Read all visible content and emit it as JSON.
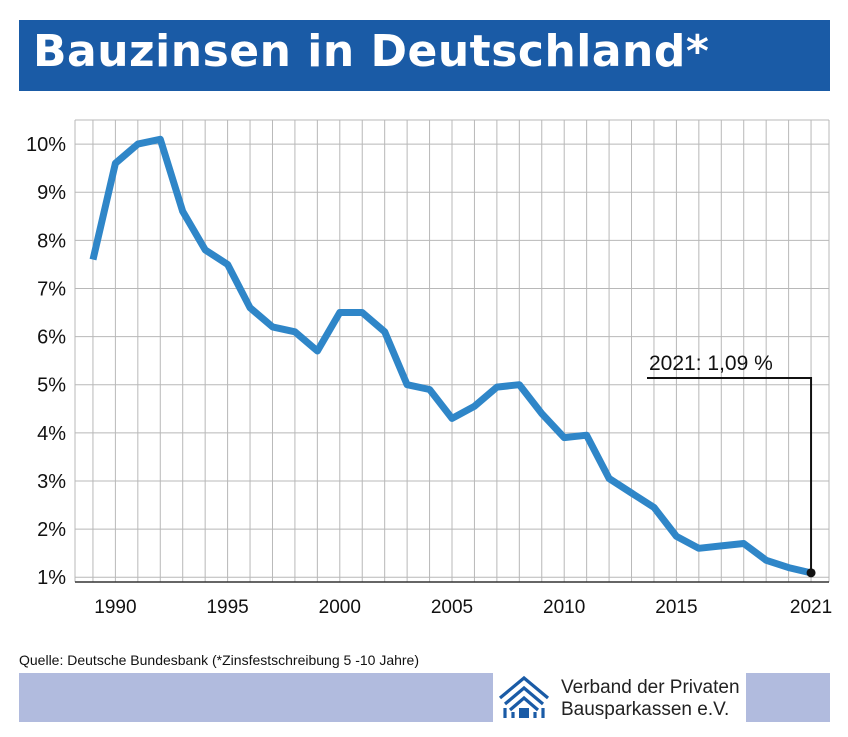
{
  "header": {
    "title": "Bauzinsen in Deutschland*"
  },
  "source": "Quelle: Deutsche Bundesbank (*Zinsfestschreibung 5 -10 Jahre)",
  "logo": {
    "icon": "house-roof-logo-icon",
    "line1": "Verband der Privaten",
    "line2": "Bausparkassen e.V."
  },
  "colors": {
    "title_bar": "#1a5ba6",
    "line": "#2f86c8",
    "grid": "#b8b8b8",
    "footer_bar": "#b1bbde",
    "logo": "#1a5ba6"
  },
  "chart_data": {
    "type": "line",
    "title": "Bauzinsen in Deutschland*",
    "xlabel": "",
    "ylabel": "",
    "xlim": [
      1988.2,
      2021.8
    ],
    "ylim": [
      0.9,
      10.5
    ],
    "grid": true,
    "x_ticks": [
      1990,
      1995,
      2000,
      2005,
      2010,
      2015,
      2021
    ],
    "y_ticks": [
      1,
      2,
      3,
      4,
      5,
      6,
      7,
      8,
      9,
      10
    ],
    "y_tick_labels": [
      "1%",
      "2%",
      "3%",
      "4%",
      "5%",
      "6%",
      "7%",
      "8%",
      "9%",
      "10%"
    ],
    "series": [
      {
        "x": [
          1989,
          1990,
          1991,
          1992,
          1993,
          1994,
          1995,
          1996,
          1997,
          1998,
          1999,
          2000,
          2001,
          2002,
          2003,
          2004,
          2005,
          2006,
          2007,
          2008,
          2009,
          2010,
          2011,
          2012,
          2013,
          2014,
          2015,
          2016,
          2017,
          2018,
          2019,
          2020,
          2021
        ],
        "y": [
          7.6,
          9.6,
          10.0,
          10.1,
          8.6,
          7.8,
          7.5,
          6.6,
          6.2,
          6.1,
          5.7,
          6.5,
          6.5,
          6.1,
          5.0,
          4.9,
          4.3,
          4.55,
          4.95,
          5.0,
          4.4,
          3.9,
          3.95,
          3.05,
          2.75,
          2.45,
          1.85,
          1.6,
          1.65,
          1.7,
          1.35,
          1.2,
          1.09
        ]
      }
    ],
    "annotation": {
      "text": "2021: 1,09 %",
      "x": 2021,
      "y": 1.09
    }
  }
}
